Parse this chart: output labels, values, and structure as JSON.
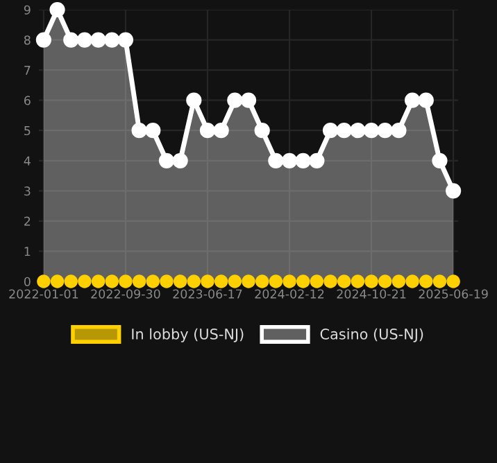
{
  "chart_data": {
    "type": "area",
    "categories": [
      "2022-01-01",
      null,
      null,
      null,
      null,
      null,
      "2022-09-30",
      null,
      null,
      null,
      null,
      null,
      "2023-06-17",
      null,
      null,
      null,
      null,
      null,
      "2024-02-12",
      null,
      null,
      null,
      null,
      null,
      "2024-10-21",
      null,
      null,
      null,
      null,
      null,
      "2025-06-19"
    ],
    "series": [
      {
        "name": "In lobby (US-NJ)",
        "color": "#ffd000",
        "type": "scatter",
        "values": [
          0,
          0,
          0,
          0,
          0,
          0,
          0,
          0,
          0,
          0,
          0,
          0,
          0,
          0,
          0,
          0,
          0,
          0,
          0,
          0,
          0,
          0,
          0,
          0,
          0,
          0,
          0,
          0,
          0,
          0,
          0
        ]
      },
      {
        "name": "Casino (US-NJ)",
        "color": "#ffffff",
        "values": [
          8,
          9,
          8,
          8,
          8,
          8,
          8,
          5,
          5,
          4,
          4,
          6,
          5,
          5,
          6,
          6,
          5,
          4,
          4,
          4,
          4,
          5,
          5,
          5,
          5,
          5,
          5,
          6,
          6,
          4,
          3
        ]
      }
    ],
    "ylim": [
      0,
      9
    ],
    "yticks": [
      0,
      1,
      2,
      3,
      4,
      5,
      6,
      7,
      8,
      9
    ],
    "grid": true,
    "legend": "bottom",
    "marker": "circle"
  }
}
